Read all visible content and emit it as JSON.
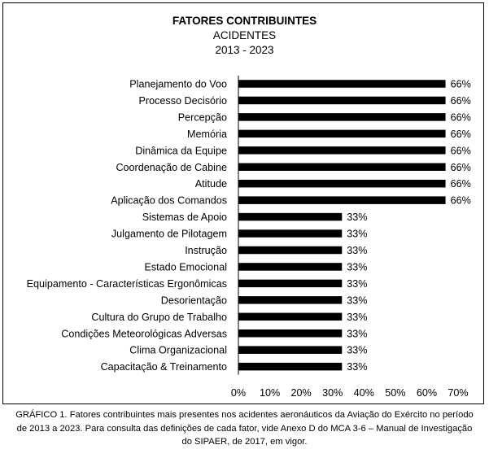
{
  "chart_data": {
    "type": "bar",
    "orientation": "horizontal",
    "title": "FATORES CONTRIBUINTES",
    "subtitle": "ACIDENTES",
    "period": "2013 - 2023",
    "categories": [
      "Planejamento do Voo",
      "Processo Decisório",
      "Percepção",
      "Memória",
      "Dinâmica da Equipe",
      "Coordenação de Cabine",
      "Atitude",
      "Aplicação dos Comandos",
      "Sistemas de Apoio",
      "Julgamento de Pilotagem",
      "Instrução",
      "Estado Emocional",
      "Equipamento - Características Ergonômicas",
      "Desorientação",
      "Cultura do Grupo de Trabalho",
      "Condições Meteorológicas Adversas",
      "Clima Organizacional",
      "Capacitação & Treinamento"
    ],
    "values": [
      66,
      66,
      66,
      66,
      66,
      66,
      66,
      66,
      33,
      33,
      33,
      33,
      33,
      33,
      33,
      33,
      33,
      33
    ],
    "data_labels": [
      "66%",
      "66%",
      "66%",
      "66%",
      "66%",
      "66%",
      "66%",
      "66%",
      "33%",
      "33%",
      "33%",
      "33%",
      "33%",
      "33%",
      "33%",
      "33%",
      "33%",
      "33%"
    ],
    "xlim": [
      0,
      70
    ],
    "xticks": [
      "0%",
      "10%",
      "20%",
      "30%",
      "40%",
      "50%",
      "60%",
      "70%"
    ],
    "grid": false,
    "bar_color": "#000000"
  },
  "caption": "GRÁFICO 1. Fatores contribuintes mais presentes nos acidentes aeronáuticos da Aviação do Exército no período de 2013 a 2023. Para consulta das definições de cada fator, vide Anexo D do MCA 3-6 – Manual de Investigação do SIPAER, de 2017, em vigor."
}
